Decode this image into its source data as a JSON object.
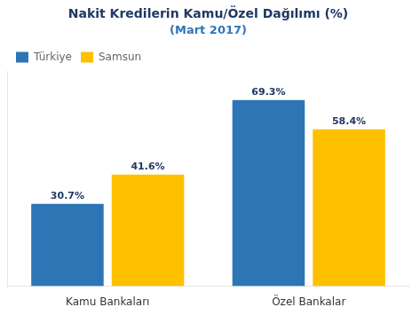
{
  "chart_data": {
    "type": "bar",
    "title": "Nakit Kredilerin Kamu/Özel Dağılımı (%)",
    "subtitle": "(Mart 2017)",
    "categories": [
      "Kamu Bankaları",
      "Özel Bankalar"
    ],
    "series": [
      {
        "name": "Türkiye",
        "color": "#2E75B6",
        "values": [
          30.7,
          69.3
        ],
        "value_labels": [
          "30.7%",
          "69.3%"
        ]
      },
      {
        "name": "Samsun",
        "color": "#FFC000",
        "values": [
          41.6,
          58.4
        ],
        "value_labels": [
          "41.6%",
          "58.4%"
        ]
      }
    ],
    "ylim": [
      0,
      80
    ],
    "grid": false,
    "legend": "upper left",
    "data_labels": true,
    "tick_labels": "x"
  }
}
